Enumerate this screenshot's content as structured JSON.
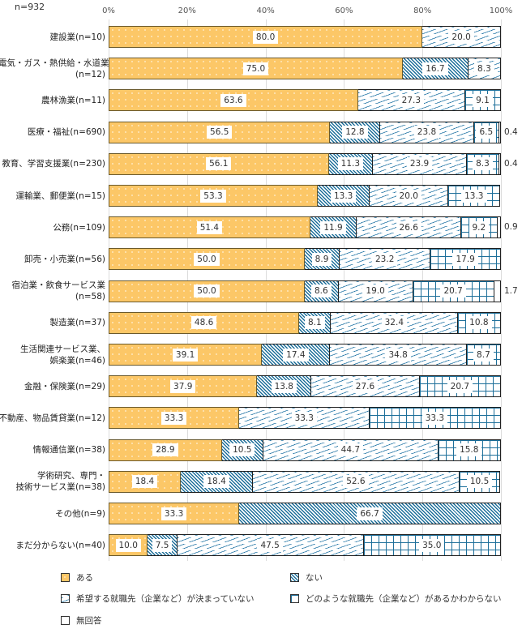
{
  "chart_data": {
    "type": "bar",
    "orientation": "horizontal-stacked-100",
    "title": "",
    "sample_size_label": "n=932",
    "xlabel": "",
    "ylabel": "",
    "xlim": [
      0,
      100
    ],
    "x_ticks": [
      "0%",
      "20%",
      "40%",
      "60%",
      "80%",
      "100%"
    ],
    "grid": true,
    "legend_position": "bottom",
    "categories": [
      [
        "建設業(n=10)"
      ],
      [
        "電気・ガス・熱供給・水道業",
        "(n=12)"
      ],
      [
        "農林漁業(n=11)"
      ],
      [
        "医療・福祉(n=690)"
      ],
      [
        "教育、学習支援業(n=230)"
      ],
      [
        "運輸業、郵便業(n=15)"
      ],
      [
        "公務(n=109)"
      ],
      [
        "卸売・小売業(n=56)"
      ],
      [
        "宿泊業・飲食サービス業",
        "(n=58)"
      ],
      [
        "製造業(n=37)"
      ],
      [
        "生活関連サービス業、",
        "娯楽業(n=46)"
      ],
      [
        "金融・保険業(n=29)"
      ],
      [
        "不動産、物品賃貸業(n=12)"
      ],
      [
        "情報通信業(n=38)"
      ],
      [
        "学術研究、専門・",
        "技術サービス業(n=38)"
      ],
      [
        "その他(n=9)"
      ],
      [
        "まだ分からない(n=40)"
      ]
    ],
    "series": [
      {
        "key": "aru",
        "name": "ある",
        "color": "#fcc767",
        "values": [
          80.0,
          75.0,
          63.6,
          56.5,
          56.1,
          53.3,
          51.4,
          50.0,
          50.0,
          48.6,
          39.1,
          37.9,
          33.3,
          28.9,
          18.4,
          33.3,
          10.0
        ]
      },
      {
        "key": "nai",
        "name": "ない",
        "color": "#1d6f9a",
        "values": [
          0,
          16.7,
          0,
          12.8,
          11.3,
          13.3,
          11.9,
          8.9,
          8.6,
          8.1,
          17.4,
          13.8,
          0,
          10.5,
          18.4,
          66.7,
          7.5
        ]
      },
      {
        "key": "kimaranai",
        "name": "希望する就職先（企業など）が決まっていない",
        "color": "#2a7aa8",
        "values": [
          20.0,
          8.3,
          27.3,
          23.8,
          23.9,
          20.0,
          26.6,
          23.2,
          19.0,
          32.4,
          34.8,
          27.6,
          33.3,
          44.7,
          52.6,
          0,
          47.5
        ]
      },
      {
        "key": "wakaranai",
        "name": "どのような就職先（企業など）があるかわからない",
        "color": "#1d6f9a",
        "values": [
          0,
          0,
          9.1,
          6.5,
          8.3,
          13.3,
          9.2,
          17.9,
          20.7,
          10.8,
          8.7,
          20.7,
          33.3,
          15.8,
          10.5,
          0,
          35.0
        ]
      },
      {
        "key": "mukaito",
        "name": "無回答",
        "color": "#ffffff",
        "values": [
          0,
          0,
          0,
          0.4,
          0.4,
          0,
          0.9,
          0,
          1.7,
          0,
          0,
          0,
          0,
          0,
          0,
          0,
          0
        ]
      }
    ],
    "value_labels": [
      [
        "80.0",
        "",
        "20.0",
        "",
        ""
      ],
      [
        "75.0",
        "16.7",
        "8.3",
        "",
        ""
      ],
      [
        "63.6",
        "",
        "27.3",
        "9.1",
        ""
      ],
      [
        "56.5",
        "12.8",
        "23.8",
        "6.5",
        "0.4"
      ],
      [
        "56.1",
        "11.3",
        "23.9",
        "8.3",
        "0.4"
      ],
      [
        "53.3",
        "13.3",
        "20.0",
        "13.3",
        ""
      ],
      [
        "51.4",
        "11.9",
        "26.6",
        "9.2",
        "0.9"
      ],
      [
        "50.0",
        "8.9",
        "23.2",
        "17.9",
        ""
      ],
      [
        "50.0",
        "8.6",
        "19.0",
        "20.7",
        "1.7"
      ],
      [
        "48.6",
        "8.1",
        "32.4",
        "10.8",
        ""
      ],
      [
        "39.1",
        "17.4",
        "34.8",
        "8.7",
        ""
      ],
      [
        "37.9",
        "13.8",
        "27.6",
        "20.7",
        ""
      ],
      [
        "33.3",
        "",
        "33.3",
        "33.3",
        ""
      ],
      [
        "28.9",
        "10.5",
        "44.7",
        "15.8",
        ""
      ],
      [
        "18.4",
        "18.4",
        "52.6",
        "10.5",
        ""
      ],
      [
        "33.3",
        "66.7",
        "",
        "",
        ""
      ],
      [
        "10.0",
        "7.5",
        "47.5",
        "35.0",
        ""
      ]
    ]
  },
  "legend": [
    {
      "key": "aru",
      "label": "ある"
    },
    {
      "key": "nai",
      "label": "ない"
    },
    {
      "key": "kimaranai",
      "label": "希望する就職先（企業など）が決まっていない"
    },
    {
      "key": "wakaranai",
      "label": "どのような就職先（企業など）があるかわからない"
    },
    {
      "key": "mukaito",
      "label": "無回答"
    }
  ]
}
